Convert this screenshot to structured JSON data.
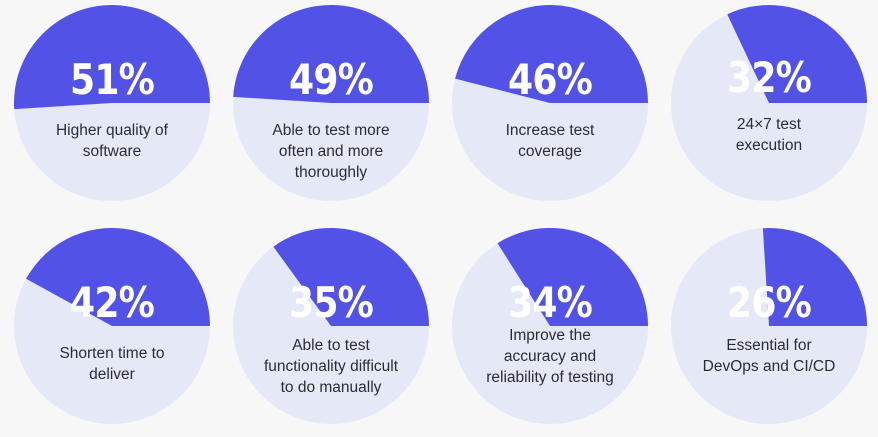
{
  "colors": {
    "filled": "#5252e6",
    "remainder": "#e5e8f6",
    "background": "#f7f7f8",
    "text": "#2b2d35"
  },
  "chart_data": [
    {
      "type": "pie",
      "values": [
        51,
        49
      ],
      "value_label": "51%",
      "label_lines": [
        "Higher quality of",
        "software"
      ]
    },
    {
      "type": "pie",
      "values": [
        49,
        51
      ],
      "value_label": "49%",
      "label_lines": [
        "Able to test more",
        "often and more",
        "thoroughly"
      ]
    },
    {
      "type": "pie",
      "values": [
        46,
        54
      ],
      "value_label": "46%",
      "label_lines": [
        "Increase test",
        "coverage"
      ]
    },
    {
      "type": "pie",
      "values": [
        32,
        68
      ],
      "value_label": "32%",
      "label_lines": [
        "24×7 test",
        "execution"
      ]
    },
    {
      "type": "pie",
      "values": [
        42,
        58
      ],
      "value_label": "42%",
      "label_lines": [
        "Shorten time to",
        "deliver"
      ]
    },
    {
      "type": "pie",
      "values": [
        35,
        65
      ],
      "value_label": "35%",
      "label_lines": [
        "Able to test",
        "functionality difficult",
        "to do manually"
      ]
    },
    {
      "type": "pie",
      "values": [
        34,
        66
      ],
      "value_label": "34%",
      "label_lines": [
        "Improve the",
        "accuracy and",
        "reliability of testing"
      ]
    },
    {
      "type": "pie",
      "values": [
        26,
        74
      ],
      "value_label": "26%",
      "label_lines": [
        "Essential for",
        "DevOps and CI/CD"
      ]
    }
  ]
}
